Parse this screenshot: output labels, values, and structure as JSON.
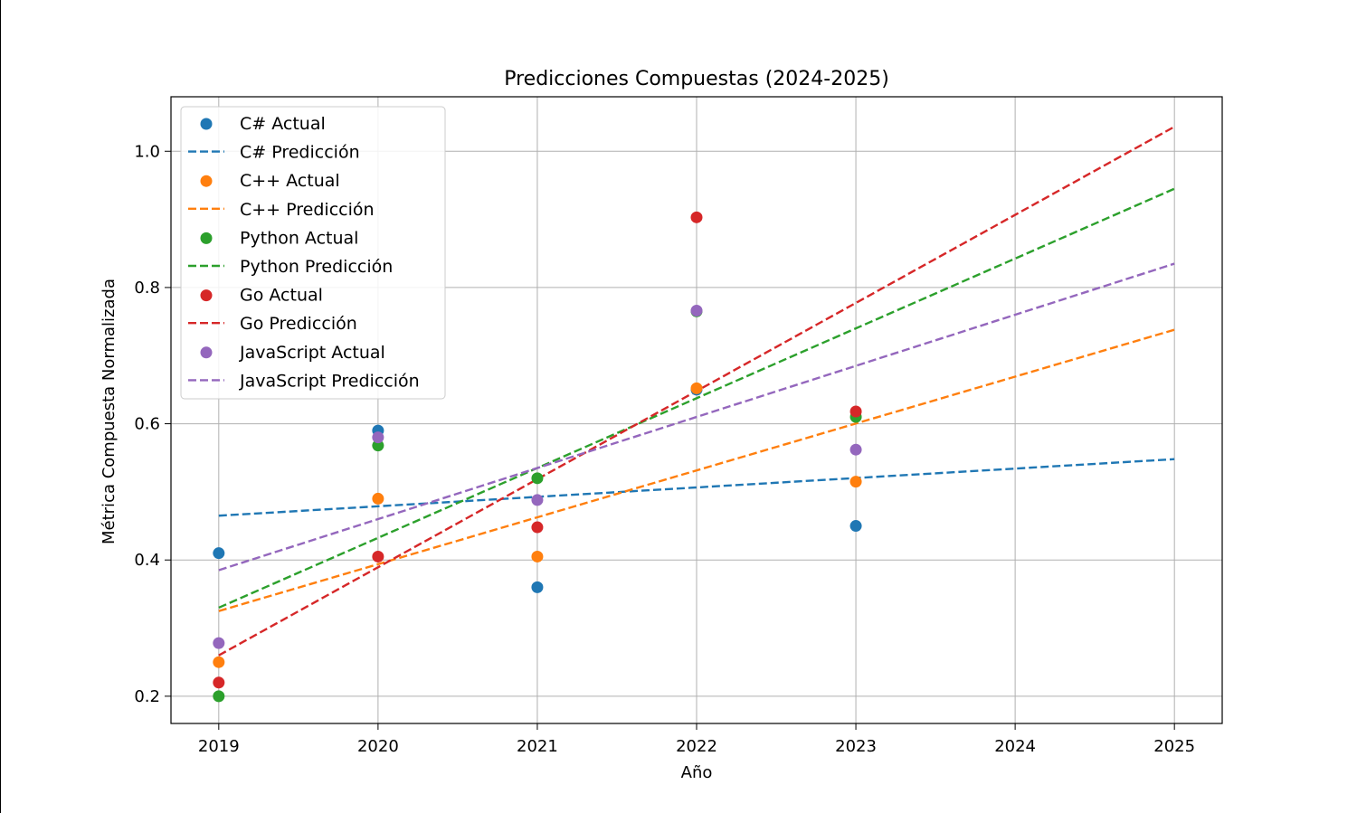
{
  "chart_data": {
    "type": "scatter",
    "title": "Predicciones Compuestas (2024-2025)",
    "xlabel": "Año",
    "ylabel": "Métrica Compuesta Normalizada",
    "xlim": [
      2018.7,
      2025.3
    ],
    "ylim": [
      0.16,
      1.08
    ],
    "xticks": [
      "2019",
      "2020",
      "2021",
      "2022",
      "2023",
      "2024",
      "2025"
    ],
    "yticks": [
      "0.2",
      "0.4",
      "0.6",
      "0.8",
      "1.0"
    ],
    "grid": true,
    "legend_position": "top-left",
    "series": [
      {
        "name": "C#",
        "actual_label": "C# Actual",
        "prediction_label": "C# Predicción",
        "color": "#1f77b4",
        "x": [
          2019,
          2020,
          2021,
          2022,
          2023
        ],
        "y": [
          0.41,
          0.59,
          0.36,
          0.65,
          0.45
        ],
        "prediction": {
          "x": [
            2019,
            2025
          ],
          "y": [
            0.465,
            0.548
          ]
        }
      },
      {
        "name": "C++",
        "actual_label": "C++ Actual",
        "prediction_label": "C++ Predicción",
        "color": "#ff7f0e",
        "x": [
          2019,
          2020,
          2021,
          2022,
          2023
        ],
        "y": [
          0.25,
          0.49,
          0.405,
          0.652,
          0.515
        ],
        "prediction": {
          "x": [
            2019,
            2025
          ],
          "y": [
            0.325,
            0.738
          ]
        }
      },
      {
        "name": "Python",
        "actual_label": "Python Actual",
        "prediction_label": "Python Predicción",
        "color": "#2ca02c",
        "x": [
          2019,
          2020,
          2021,
          2022,
          2023
        ],
        "y": [
          0.2,
          0.568,
          0.52,
          0.765,
          0.61
        ],
        "prediction": {
          "x": [
            2019,
            2025
          ],
          "y": [
            0.33,
            0.945
          ]
        }
      },
      {
        "name": "Go",
        "actual_label": "Go Actual",
        "prediction_label": "Go Predicción",
        "color": "#d62728",
        "x": [
          2019,
          2020,
          2021,
          2022,
          2023
        ],
        "y": [
          0.22,
          0.405,
          0.448,
          0.903,
          0.618
        ],
        "prediction": {
          "x": [
            2019,
            2025
          ],
          "y": [
            0.26,
            1.036
          ]
        }
      },
      {
        "name": "JavaScript",
        "actual_label": "JavaScript Actual",
        "prediction_label": "JavaScript Predicción",
        "color": "#9467bd",
        "x": [
          2019,
          2020,
          2021,
          2022,
          2023
        ],
        "y": [
          0.278,
          0.58,
          0.488,
          0.766,
          0.562
        ],
        "prediction": {
          "x": [
            2019,
            2025
          ],
          "y": [
            0.385,
            0.835
          ]
        }
      }
    ]
  }
}
